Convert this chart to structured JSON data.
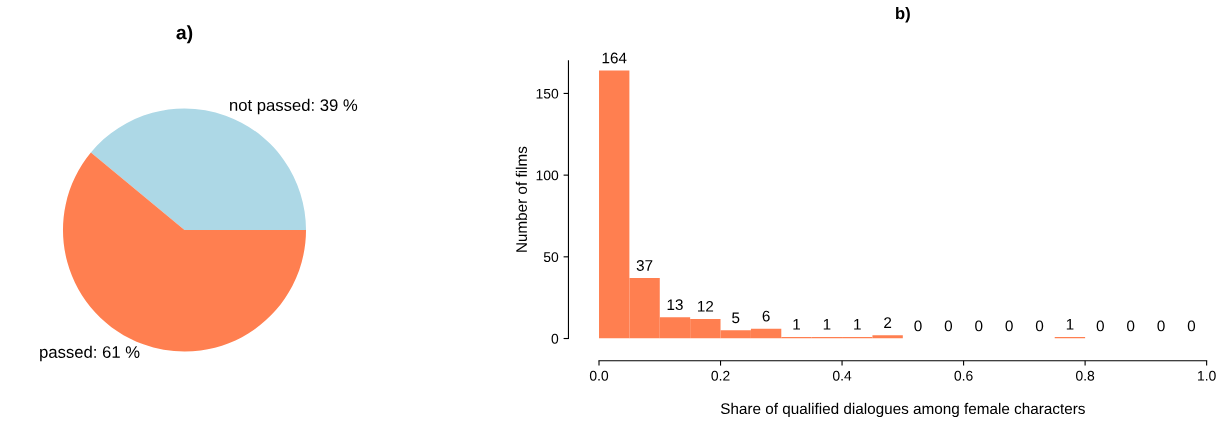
{
  "chart_data": [
    {
      "type": "pie",
      "title": "a)",
      "categories": [
        "not passed: 39 %",
        "passed: 61 %"
      ],
      "values": [
        39,
        61
      ],
      "colors": [
        "#add8e6",
        "#ff7f50"
      ]
    },
    {
      "type": "histogram",
      "title": "b)",
      "xlabel": "Share of qualified dialogues among female characters",
      "ylabel": "Number of films",
      "bins": [
        0.0,
        0.05,
        0.1,
        0.15,
        0.2,
        0.25,
        0.3,
        0.35,
        0.4,
        0.45,
        0.5,
        0.55,
        0.6,
        0.65,
        0.7,
        0.75,
        0.8,
        0.85,
        0.9,
        0.95,
        1.0
      ],
      "values": [
        164,
        37,
        13,
        12,
        5,
        6,
        1,
        1,
        1,
        2,
        0,
        0,
        0,
        0,
        0,
        1,
        0,
        0,
        0,
        0
      ],
      "color": "#ff7f50",
      "data_labels": true,
      "xlim": [
        0.0,
        1.0
      ],
      "xticks": [
        {
          "value": 0.0,
          "label": "0.0"
        },
        {
          "value": 0.2,
          "label": "0.2"
        },
        {
          "value": 0.4,
          "label": "0.4"
        },
        {
          "value": 0.6,
          "label": "0.6"
        },
        {
          "value": 0.8,
          "label": "0.8"
        },
        {
          "value": 1.0,
          "label": "1.0"
        }
      ],
      "ylim": [
        0,
        170
      ],
      "yticks": [
        0,
        50,
        100,
        150
      ],
      "grid": false
    }
  ]
}
